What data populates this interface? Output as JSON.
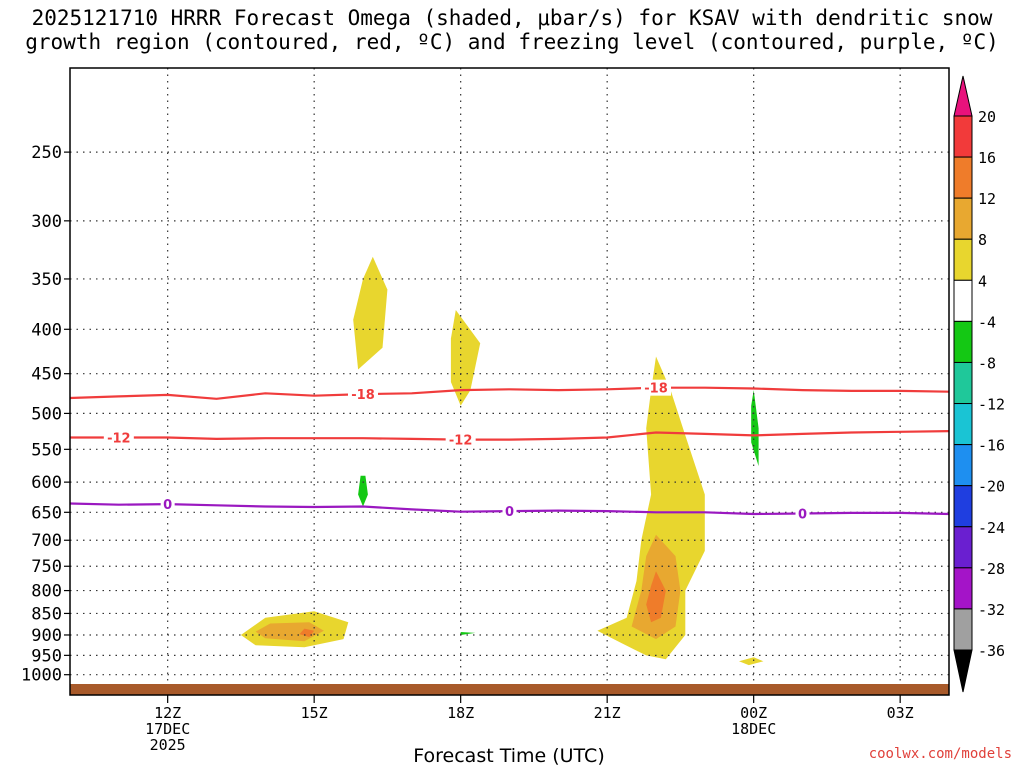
{
  "chart_data": {
    "type": "heatmap",
    "title_line1": "2025121710 HRRR Forecast Omega (shaded, μbar/s) for KSAV with dendritic snow",
    "title_line2": "growth region (contoured, red, ºC) and freezing level (contoured, purple, ºC)",
    "xlabel": "Forecast Time (UTC)",
    "ylabel": "",
    "x_range_hours": [
      10,
      28
    ],
    "y_range_hpa": [
      1025,
      200
    ],
    "x_ticks": [
      {
        "hour": 12,
        "label": "12Z",
        "sub1": "17DEC",
        "sub2": "2025"
      },
      {
        "hour": 15,
        "label": "15Z",
        "sub1": "",
        "sub2": ""
      },
      {
        "hour": 18,
        "label": "18Z",
        "sub1": "",
        "sub2": ""
      },
      {
        "hour": 21,
        "label": "21Z",
        "sub1": "",
        "sub2": ""
      },
      {
        "hour": 24,
        "label": "00Z",
        "sub1": "18DEC",
        "sub2": ""
      },
      {
        "hour": 27,
        "label": "03Z",
        "sub1": "",
        "sub2": ""
      }
    ],
    "y_ticks": [
      250,
      300,
      350,
      400,
      450,
      500,
      550,
      600,
      650,
      700,
      750,
      800,
      850,
      900,
      950,
      1000
    ],
    "colorbar": {
      "levels": [
        {
          "label": "20",
          "color": "#e8127c"
        },
        {
          "label": "16",
          "color": "#f23a3a"
        },
        {
          "label": "12",
          "color": "#ef7c2a"
        },
        {
          "label": "8",
          "color": "#e8a830"
        },
        {
          "label": "4",
          "color": "#e8d62e"
        },
        {
          "label": "-4",
          "color": "#ffffff"
        },
        {
          "label": "-8",
          "color": "#14c814"
        },
        {
          "label": "-12",
          "color": "#1fc89a"
        },
        {
          "label": "-16",
          "color": "#1ac4d4"
        },
        {
          "label": "-20",
          "color": "#1e8ff0"
        },
        {
          "label": "-24",
          "color": "#1f3ee0"
        },
        {
          "label": "-28",
          "color": "#6a1fd0"
        },
        {
          "label": "-32",
          "color": "#a414c8"
        },
        {
          "label": "-36",
          "color": "#a0a0a0"
        }
      ],
      "top_triangle_color": "#e8127c",
      "bottom_triangle_color": "#000000"
    },
    "contours": [
      {
        "name": "dgz-minus18",
        "label": "-18",
        "color": "#f03c3c",
        "points": [
          [
            10,
            480
          ],
          [
            11,
            478
          ],
          [
            12,
            476
          ],
          [
            13,
            481
          ],
          [
            14,
            474
          ],
          [
            15,
            477
          ],
          [
            16,
            475
          ],
          [
            17,
            474
          ],
          [
            18,
            470
          ],
          [
            19,
            469
          ],
          [
            20,
            470
          ],
          [
            21,
            469
          ],
          [
            22,
            467
          ],
          [
            23,
            467
          ],
          [
            24,
            468
          ],
          [
            25,
            470
          ],
          [
            26,
            471
          ],
          [
            27,
            471
          ],
          [
            28,
            472
          ]
        ],
        "label_hours": [
          16,
          22
        ]
      },
      {
        "name": "dgz-minus12",
        "label": "-12",
        "color": "#f03c3c",
        "points": [
          [
            10,
            533
          ],
          [
            11,
            533
          ],
          [
            12,
            533
          ],
          [
            13,
            535
          ],
          [
            14,
            534
          ],
          [
            15,
            534
          ],
          [
            16,
            534
          ],
          [
            17,
            535
          ],
          [
            18,
            536
          ],
          [
            19,
            536
          ],
          [
            20,
            535
          ],
          [
            21,
            533
          ],
          [
            22,
            526
          ],
          [
            23,
            528
          ],
          [
            24,
            530
          ],
          [
            25,
            528
          ],
          [
            26,
            526
          ],
          [
            27,
            525
          ],
          [
            28,
            524
          ]
        ],
        "label_hours": [
          11,
          18
        ]
      },
      {
        "name": "freezing-level-0",
        "label": "0",
        "color": "#9a18c0",
        "points": [
          [
            10,
            635
          ],
          [
            11,
            637
          ],
          [
            12,
            636
          ],
          [
            13,
            638
          ],
          [
            14,
            640
          ],
          [
            15,
            641
          ],
          [
            16,
            640
          ],
          [
            17,
            645
          ],
          [
            18,
            649
          ],
          [
            19,
            648
          ],
          [
            20,
            647
          ],
          [
            21,
            648
          ],
          [
            22,
            650
          ],
          [
            23,
            650
          ],
          [
            24,
            653
          ],
          [
            25,
            652
          ],
          [
            26,
            651
          ],
          [
            27,
            651
          ],
          [
            28,
            653
          ]
        ],
        "label_hours": [
          12,
          19,
          25
        ]
      }
    ],
    "shaded_regions": [
      {
        "level": "-4",
        "points": [
          [
            15.0,
            310
          ],
          [
            15.1,
            340
          ],
          [
            15.1,
            420
          ],
          [
            15.0,
            440
          ],
          [
            14.8,
            420
          ],
          [
            14.8,
            340
          ]
        ]
      },
      {
        "level": "-4",
        "points": [
          [
            16.0,
            520
          ],
          [
            16.5,
            560
          ],
          [
            16.8,
            630
          ],
          [
            16.6,
            700
          ],
          [
            15.6,
            680
          ],
          [
            15.5,
            640
          ],
          [
            15.6,
            560
          ]
        ]
      },
      {
        "level": "-8",
        "points": [
          [
            16.05,
            590
          ],
          [
            16.1,
            620
          ],
          [
            16.0,
            640
          ],
          [
            15.9,
            620
          ],
          [
            15.95,
            590
          ]
        ]
      },
      {
        "level": "-4",
        "points": [
          [
            17.8,
            595
          ],
          [
            18.5,
            610
          ],
          [
            18.6,
            680
          ],
          [
            18.2,
            760
          ],
          [
            17.5,
            735
          ],
          [
            17.0,
            690
          ],
          [
            17.2,
            640
          ]
        ]
      },
      {
        "level": "-4",
        "points": [
          [
            19.0,
            300
          ],
          [
            19.3,
            315
          ],
          [
            19.0,
            340
          ],
          [
            18.9,
            320
          ]
        ]
      },
      {
        "level": "-4",
        "points": [
          [
            17.8,
            860
          ],
          [
            19.4,
            855
          ],
          [
            19.5,
            900
          ],
          [
            18.7,
            960
          ],
          [
            18.2,
            950
          ],
          [
            17.5,
            920
          ],
          [
            17.4,
            890
          ]
        ]
      },
      {
        "level": "-8",
        "points": [
          [
            18.0,
            893
          ],
          [
            18.3,
            895
          ],
          [
            18.0,
            900
          ]
        ]
      },
      {
        "level": "-4",
        "points": [
          [
            16.1,
            945
          ],
          [
            16.2,
            960
          ],
          [
            16.0,
            970
          ],
          [
            15.9,
            960
          ]
        ]
      },
      {
        "level": "-4",
        "points": [
          [
            20.7,
            235
          ],
          [
            21.3,
            245
          ],
          [
            21.3,
            270
          ],
          [
            20.7,
            275
          ],
          [
            20.4,
            255
          ]
        ]
      },
      {
        "level": "-4",
        "points": [
          [
            21.0,
            495
          ],
          [
            21.3,
            550
          ],
          [
            21.1,
            600
          ],
          [
            21.0,
            660
          ],
          [
            20.8,
            600
          ],
          [
            20.7,
            560
          ]
        ]
      },
      {
        "level": "-4",
        "points": [
          [
            20.9,
            945
          ],
          [
            21.1,
            955
          ],
          [
            21.0,
            970
          ],
          [
            20.8,
            960
          ]
        ]
      },
      {
        "level": "-4",
        "points": [
          [
            22.9,
            180
          ],
          [
            23.2,
            210
          ],
          [
            23.0,
            225
          ],
          [
            22.8,
            210
          ]
        ]
      },
      {
        "level": "-4",
        "points": [
          [
            23.8,
            380
          ],
          [
            24.3,
            440
          ],
          [
            24.8,
            510
          ],
          [
            25.3,
            630
          ],
          [
            25.3,
            700
          ],
          [
            25.6,
            780
          ],
          [
            25.5,
            850
          ],
          [
            25.2,
            880
          ],
          [
            24.8,
            820
          ],
          [
            24.6,
            720
          ],
          [
            24.2,
            640
          ],
          [
            23.7,
            560
          ],
          [
            23.6,
            460
          ]
        ]
      },
      {
        "level": "-8",
        "points": [
          [
            24.0,
            470
          ],
          [
            24.1,
            520
          ],
          [
            24.1,
            575
          ],
          [
            23.95,
            540
          ],
          [
            23.95,
            490
          ]
        ]
      },
      {
        "level": "-4",
        "points": [
          [
            28.0,
            330
          ],
          [
            28.0,
            480
          ],
          [
            27.6,
            440
          ],
          [
            26.9,
            390
          ],
          [
            27.0,
            350
          ]
        ]
      },
      {
        "level": "4",
        "points": [
          [
            16.2,
            330
          ],
          [
            16.5,
            360
          ],
          [
            16.4,
            420
          ],
          [
            15.9,
            445
          ],
          [
            15.8,
            390
          ],
          [
            16.0,
            350
          ]
        ]
      },
      {
        "level": "4",
        "points": [
          [
            17.9,
            380
          ],
          [
            18.4,
            415
          ],
          [
            18.2,
            470
          ],
          [
            18.0,
            490
          ],
          [
            17.8,
            460
          ],
          [
            17.8,
            410
          ]
        ]
      },
      {
        "level": "4",
        "points": [
          [
            22.0,
            430
          ],
          [
            22.3,
            470
          ],
          [
            22.6,
            530
          ],
          [
            23.0,
            620
          ],
          [
            23.0,
            720
          ],
          [
            22.6,
            800
          ],
          [
            22.6,
            900
          ],
          [
            22.2,
            960
          ],
          [
            21.8,
            950
          ],
          [
            21.3,
            920
          ],
          [
            20.8,
            890
          ],
          [
            21.4,
            860
          ],
          [
            21.6,
            780
          ],
          [
            21.7,
            700
          ],
          [
            21.9,
            620
          ],
          [
            21.8,
            520
          ],
          [
            21.9,
            470
          ]
        ]
      },
      {
        "level": "8",
        "points": [
          [
            22.0,
            690
          ],
          [
            22.4,
            730
          ],
          [
            22.5,
            800
          ],
          [
            22.4,
            880
          ],
          [
            22.0,
            910
          ],
          [
            21.5,
            880
          ],
          [
            21.7,
            800
          ],
          [
            21.8,
            730
          ]
        ]
      },
      {
        "level": "12",
        "points": [
          [
            22.0,
            760
          ],
          [
            22.2,
            800
          ],
          [
            22.1,
            860
          ],
          [
            21.9,
            870
          ],
          [
            21.8,
            830
          ],
          [
            21.9,
            790
          ]
        ]
      },
      {
        "level": "4",
        "points": [
          [
            14.0,
            860
          ],
          [
            15.0,
            845
          ],
          [
            15.7,
            870
          ],
          [
            15.6,
            910
          ],
          [
            14.8,
            930
          ],
          [
            13.8,
            925
          ],
          [
            13.5,
            900
          ]
        ]
      },
      {
        "level": "8",
        "points": [
          [
            14.1,
            873
          ],
          [
            14.9,
            870
          ],
          [
            15.2,
            890
          ],
          [
            14.8,
            915
          ],
          [
            14.0,
            908
          ],
          [
            13.8,
            892
          ]
        ]
      },
      {
        "level": "12",
        "points": [
          [
            14.8,
            885
          ],
          [
            15.0,
            890
          ],
          [
            14.9,
            905
          ],
          [
            14.7,
            898
          ]
        ]
      },
      {
        "level": "4",
        "points": [
          [
            24.0,
            955
          ],
          [
            24.2,
            965
          ],
          [
            23.9,
            975
          ],
          [
            23.7,
            965
          ]
        ]
      }
    ],
    "surface_color": "#a85a2a"
  },
  "footer": {
    "watermark": "coolwx.com/models"
  }
}
